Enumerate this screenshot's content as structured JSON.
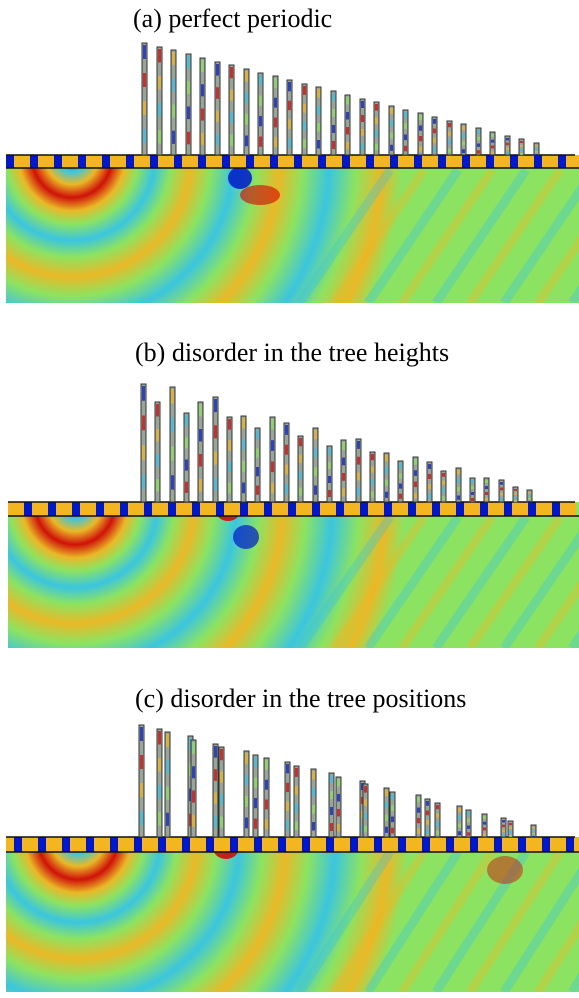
{
  "panels": [
    {
      "id": "a",
      "title": "(a) perfect periodic"
    },
    {
      "id": "b",
      "title": "(b) disorder in the tree heights"
    },
    {
      "id": "c",
      "title": "(c) disorder in the tree positions"
    }
  ],
  "colors": {
    "background_field": "#7fe07a",
    "positive_max": "#d60000",
    "positive_mid": "#f3b520",
    "neutral": "#8de35f",
    "negative_mid": "#35c3e8",
    "negative_max": "#0018c8",
    "tree_outline": "#333333"
  }
}
